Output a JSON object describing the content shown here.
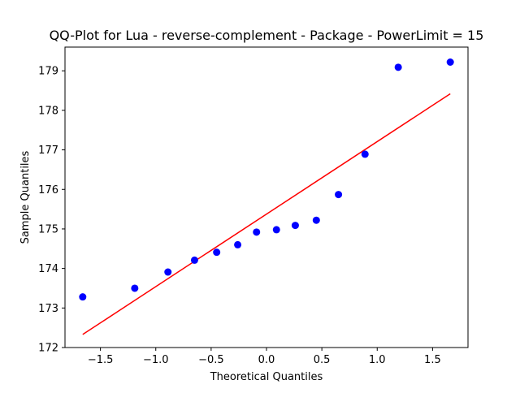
{
  "chart_data": {
    "type": "scatter",
    "title": "QQ-Plot for Lua - reverse-complement - Package - PowerLimit = 15",
    "xlabel": "Theoretical Quantiles",
    "ylabel": "Sample Quantiles",
    "xlim": [
      -1.82,
      1.82
    ],
    "ylim": [
      172,
      179.6
    ],
    "xticks": [
      -1.5,
      -1.0,
      -0.5,
      0.0,
      0.5,
      1.0,
      1.5
    ],
    "xtick_labels": [
      "−1.5",
      "−1.0",
      "−0.5",
      "0.0",
      "0.5",
      "1.0",
      "1.5"
    ],
    "yticks": [
      172,
      173,
      174,
      175,
      176,
      177,
      178,
      179
    ],
    "ytick_labels": [
      "172",
      "173",
      "174",
      "175",
      "176",
      "177",
      "178",
      "179"
    ],
    "grid": false,
    "series": [
      {
        "kind": "points",
        "color": "#0000ff",
        "x": [
          -1.66,
          -1.19,
          -0.89,
          -0.65,
          -0.45,
          -0.26,
          -0.09,
          0.09,
          0.26,
          0.45,
          0.65,
          0.89,
          1.19,
          1.66
        ],
        "y": [
          173.28,
          173.5,
          173.91,
          174.21,
          174.41,
          174.6,
          174.92,
          174.98,
          175.09,
          175.22,
          175.87,
          176.89,
          179.09,
          179.22
        ]
      },
      {
        "kind": "line",
        "color": "#ff0000",
        "x": [
          -1.66,
          1.66
        ],
        "y": [
          172.33,
          178.42
        ]
      }
    ]
  }
}
